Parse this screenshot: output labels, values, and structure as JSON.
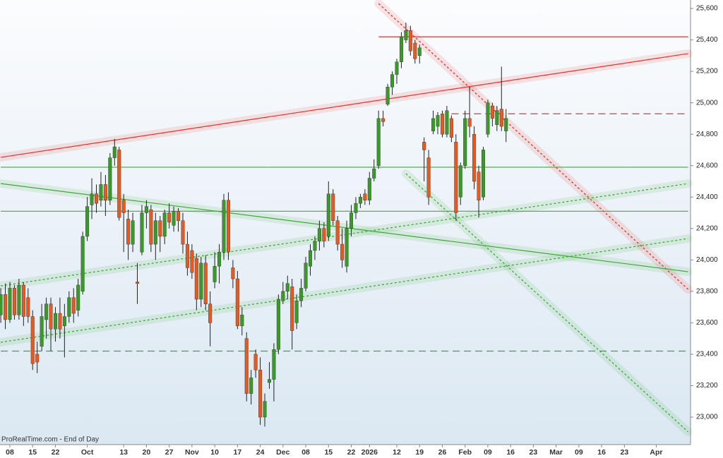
{
  "chart_data": {
    "type": "candlestick",
    "source": "ProRealTime.com - End of Day",
    "categories": [
      null,
      null,
      "08",
      null,
      null,
      null,
      null,
      "15",
      null,
      null,
      null,
      null,
      "22",
      null,
      null,
      null,
      null,
      null,
      null,
      "Oct",
      null,
      null,
      null,
      null,
      null,
      null,
      null,
      "13",
      null,
      null,
      null,
      null,
      "20",
      null,
      null,
      null,
      null,
      "27",
      null,
      null,
      null,
      null,
      "Nov",
      null,
      null,
      null,
      null,
      "10",
      null,
      null,
      null,
      null,
      "17",
      null,
      null,
      null,
      null,
      "24",
      null,
      null,
      null,
      null,
      "Dec",
      null,
      null,
      null,
      null,
      "08",
      null,
      null,
      null,
      null,
      "15",
      null,
      null,
      null,
      null,
      "22",
      null,
      null,
      null,
      "2026",
      null,
      null,
      null,
      null,
      null,
      "12",
      null,
      null,
      null,
      null,
      "19",
      null,
      null,
      null,
      null,
      "26",
      null,
      null,
      null,
      null,
      "Feb",
      null,
      null,
      null,
      null,
      "09",
      null,
      null,
      null,
      null,
      "16",
      null,
      null,
      null,
      null,
      "23",
      null,
      null,
      null,
      null,
      "Mar",
      null,
      null,
      null,
      null,
      "09",
      null,
      null,
      null,
      null,
      "16",
      null,
      null,
      null,
      null,
      "23",
      null,
      null,
      null,
      null,
      null,
      null,
      "Apr",
      null,
      null,
      null,
      null,
      null,
      null,
      null
    ],
    "up_color": "#3a9a28",
    "down_color": "#e55a20",
    "open": [
      23650,
      23780,
      23620,
      23820,
      23650,
      23840,
      23760,
      23640,
      23400,
      23450,
      23620,
      23720,
      23560,
      23660,
      23580,
      23640,
      23760,
      23680,
      23800,
      24150,
      24350,
      24420,
      24380,
      24480,
      24380,
      24650,
      24700,
      24380,
      24260,
      24100,
      23860,
      24050,
      24300,
      24320,
      24100,
      24250,
      24150,
      24300,
      24220,
      24310,
      24250,
      24100,
      24060,
      24010,
      23750,
      23980,
      23720,
      23860,
      23960,
      24050,
      24380,
      23950,
      23880,
      23580,
      23500,
      23150,
      23400,
      23300,
      23000,
      23220,
      23240,
      23430,
      23740,
      23800,
      23830,
      23600,
      23740,
      23820,
      23960,
      24060,
      24120,
      24200,
      24150,
      24420,
      24250,
      24100,
      23960,
      24200,
      24300,
      24360,
      24420,
      24380,
      24520,
      24600,
      24900,
      24990,
      25100,
      25180,
      25260,
      25400,
      25460,
      25380,
      25300,
      24750,
      24650,
      24820,
      24850,
      24930,
      24800,
      24900,
      24750,
      24400,
      24600,
      24900,
      24800,
      24560,
      24400,
      24800,
      24980,
      24860,
      24960,
      24820,
      null,
      null,
      null,
      null,
      null,
      null,
      null,
      null,
      null,
      null,
      null,
      null,
      null,
      null,
      null,
      null,
      null,
      null,
      null,
      null,
      null,
      null,
      null,
      null,
      null,
      null,
      null,
      null,
      null,
      null,
      null,
      null,
      null,
      null,
      null,
      null,
      null,
      null,
      null,
      null
    ],
    "high": [
      23820,
      23850,
      23860,
      23840,
      23880,
      23860,
      23820,
      23680,
      23480,
      23720,
      23760,
      23760,
      23700,
      23760,
      23720,
      23800,
      23820,
      23880,
      24180,
      24400,
      24520,
      24480,
      24560,
      24540,
      24680,
      24770,
      24720,
      24420,
      24320,
      24300,
      23980,
      24350,
      24380,
      24350,
      24300,
      24280,
      24320,
      24360,
      24340,
      24330,
      24300,
      24180,
      24100,
      24040,
      24020,
      24030,
      23800,
      24050,
      24100,
      24420,
      24430,
      24000,
      23930,
      23700,
      23540,
      23300,
      23430,
      23380,
      23150,
      23350,
      23470,
      23780,
      23860,
      23900,
      23880,
      23780,
      23880,
      24020,
      24100,
      24150,
      24250,
      24240,
      24500,
      24450,
      24280,
      24200,
      24250,
      24350,
      24400,
      24420,
      24450,
      24560,
      24640,
      24950,
      24950,
      25120,
      25200,
      25280,
      25450,
      25510,
      25490,
      25400,
      25370,
      24780,
      24700,
      24950,
      24940,
      24950,
      24980,
      24920,
      24800,
      24620,
      24950,
      25100,
      24850,
      24600,
      24720,
      25020,
      25000,
      24980,
      25230,
      24960,
      null,
      null,
      null,
      null,
      null,
      null,
      null,
      null,
      null,
      null,
      null,
      null,
      null,
      null,
      null,
      null,
      null,
      null,
      null,
      null,
      null,
      null,
      null,
      null,
      null,
      null,
      null,
      null,
      null,
      null,
      null,
      null,
      null,
      null,
      null,
      null,
      null,
      null,
      null,
      null
    ],
    "low": [
      23600,
      23560,
      23600,
      23620,
      23620,
      23580,
      23600,
      23300,
      23280,
      23420,
      23500,
      23420,
      23480,
      23500,
      23380,
      23600,
      23600,
      23640,
      23780,
      24120,
      24260,
      24300,
      24340,
      24280,
      24350,
      24600,
      24250,
      24050,
      24000,
      24050,
      23720,
      24030,
      24200,
      24050,
      24000,
      24050,
      24100,
      24200,
      24180,
      24180,
      24040,
      23900,
      23880,
      23680,
      23700,
      23680,
      23450,
      23820,
      23850,
      24000,
      24000,
      23820,
      23560,
      23520,
      23100,
      23080,
      23250,
      22950,
      22940,
      23180,
      23100,
      23400,
      23720,
      23750,
      23430,
      23560,
      23700,
      23800,
      23900,
      24000,
      24060,
      24080,
      24120,
      24220,
      24060,
      23950,
      23920,
      24150,
      24260,
      24330,
      24350,
      24350,
      24500,
      24580,
      24850,
      24980,
      25050,
      25120,
      25220,
      25380,
      25300,
      25250,
      25250,
      24500,
      24350,
      24800,
      24800,
      24780,
      24780,
      24750,
      24250,
      24350,
      24580,
      24780,
      24450,
      24270,
      24380,
      24780,
      24850,
      24820,
      24820,
      24750,
      null,
      null,
      null,
      null,
      null,
      null,
      null,
      null,
      null,
      null,
      null,
      null,
      null,
      null,
      null,
      null,
      null,
      null,
      null,
      null,
      null,
      null,
      null,
      null,
      null,
      null,
      null,
      null,
      null,
      null,
      null,
      null,
      null,
      null,
      null,
      null,
      null,
      null,
      null,
      null
    ],
    "close": [
      23780,
      23620,
      23820,
      23650,
      23840,
      23640,
      23640,
      23340,
      23350,
      23640,
      23720,
      23560,
      23660,
      23560,
      23640,
      23760,
      23660,
      23840,
      24150,
      24340,
      24420,
      24360,
      24480,
      24380,
      24650,
      24720,
      24270,
      24300,
      24100,
      24250,
      23850,
      24300,
      24340,
      24100,
      24250,
      24150,
      24300,
      24240,
      24310,
      24250,
      24100,
      23950,
      23920,
      23750,
      23980,
      23720,
      23600,
      23960,
      24050,
      24380,
      24050,
      23880,
      23580,
      23650,
      23150,
      23250,
      23300,
      23000,
      23100,
      23240,
      23430,
      23750,
      23800,
      23850,
      23550,
      23740,
      23820,
      23980,
      24060,
      24120,
      24200,
      24120,
      24420,
      24250,
      24100,
      24000,
      24200,
      24300,
      24360,
      24400,
      24380,
      24520,
      24580,
      24900,
      24880,
      25100,
      25180,
      25260,
      25420,
      25460,
      25330,
      25280,
      25350,
      24700,
      24400,
      24900,
      24920,
      24800,
      24950,
      24780,
      24300,
      24600,
      24900,
      24850,
      24500,
      24380,
      24700,
      25000,
      24900,
      24950,
      24850,
      24900,
      null,
      null,
      null,
      null,
      null,
      null,
      null,
      null,
      null,
      null,
      null,
      null,
      null,
      null,
      null,
      null,
      null,
      null,
      null,
      null,
      null,
      null,
      null,
      null,
      null,
      null,
      null,
      null,
      null,
      null,
      null,
      null,
      null,
      null,
      null,
      null,
      null,
      null,
      null,
      null
    ],
    "lines": [
      {
        "color": "#e8302a",
        "style": "solid",
        "glow": true,
        "points": [
          [
            0,
            24653
          ],
          [
            151,
            25313
          ]
        ]
      },
      {
        "color": "#e8302a",
        "style": "solid",
        "glow": false,
        "points": [
          [
            83,
            25420
          ],
          [
            151,
            25420
          ]
        ]
      },
      {
        "color": "#e8302a",
        "style": "dashed",
        "glow": false,
        "points": [
          [
            99,
            24930
          ],
          [
            151,
            24930
          ]
        ]
      },
      {
        "color": "#e8302a",
        "style": "dotted",
        "glow": true,
        "points": [
          [
            83,
            25631
          ],
          [
            151,
            23813
          ]
        ]
      },
      {
        "color": "#3ea93a",
        "style": "solid",
        "glow": true,
        "points": [
          [
            0,
            24486
          ],
          [
            151,
            23925
          ]
        ]
      },
      {
        "color": "#3ea93a",
        "style": "dotted",
        "glow": true,
        "points": [
          [
            0,
            23835
          ],
          [
            151,
            24486
          ]
        ]
      },
      {
        "color": "#3ea93a",
        "style": "dotted",
        "glow": true,
        "points": [
          [
            0,
            23476
          ],
          [
            151,
            24136
          ]
        ]
      },
      {
        "color": "#3ea93a",
        "style": "dotted",
        "glow": true,
        "points": [
          [
            89,
            24549
          ],
          [
            151,
            22906
          ]
        ]
      },
      {
        "color": "#3ea93a",
        "style": "solid",
        "glow": false,
        "points": [
          [
            0,
            24590
          ],
          [
            151,
            24590
          ]
        ]
      },
      {
        "color": "#3ea93a",
        "style": "solid",
        "glow": false,
        "points": [
          [
            0,
            24310
          ],
          [
            151,
            24310
          ]
        ]
      },
      {
        "color": "#3ea93a",
        "style": "dashed",
        "glow": false,
        "points": [
          [
            0,
            23420
          ],
          [
            151,
            23420
          ]
        ]
      }
    ],
    "ylim": [
      22825,
      25654
    ],
    "yticks": [
      {
        "value": 23000,
        "label": "23,000"
      },
      {
        "value": 23200,
        "label": "23,200"
      },
      {
        "value": 23400,
        "label": "23,400"
      },
      {
        "value": 23600,
        "label": "23,600"
      },
      {
        "value": 23800,
        "label": "23,800"
      },
      {
        "value": 24000,
        "label": "24,000"
      },
      {
        "value": 24200,
        "label": "24,200"
      },
      {
        "value": 24400,
        "label": "24,400"
      },
      {
        "value": 24600,
        "label": "24,600"
      },
      {
        "value": 24800,
        "label": "24,800"
      },
      {
        "value": 25000,
        "label": "25,000"
      },
      {
        "value": 25200,
        "label": "25,200"
      },
      {
        "value": 25400,
        "label": "25,400"
      },
      {
        "value": 25600,
        "label": "25,600"
      }
    ]
  }
}
